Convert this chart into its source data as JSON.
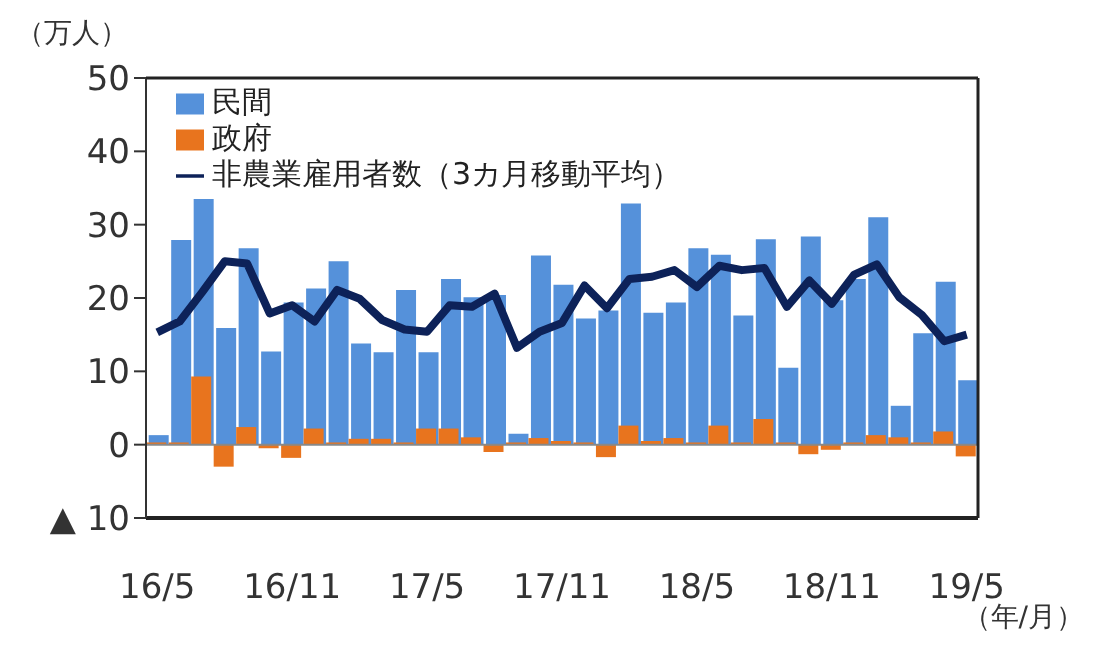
{
  "chart_data": {
    "type": "bar",
    "ylabel": "（万人）",
    "xlabel": "（年/月）",
    "categories": [
      "16/5",
      null,
      null,
      null,
      null,
      null,
      "16/11",
      null,
      null,
      null,
      null,
      null,
      "17/5",
      null,
      null,
      null,
      null,
      null,
      "17/11",
      null,
      null,
      null,
      null,
      null,
      "18/5",
      null,
      null,
      null,
      null,
      null,
      "18/11",
      null,
      null,
      null,
      null,
      null,
      "19/5"
    ],
    "series": [
      {
        "name": "民間",
        "color": "#5591da",
        "values": [
          1.3,
          27.9,
          33.5,
          15.9,
          26.8,
          12.7,
          19.4,
          21.3,
          25.0,
          13.8,
          12.6,
          21.1,
          12.6,
          22.6,
          20.1,
          20.4,
          1.5,
          25.8,
          21.8,
          17.2,
          18.3,
          32.9,
          18.0,
          19.4,
          26.8,
          25.9,
          17.6,
          28.0,
          10.5,
          28.4,
          19.7,
          22.6,
          31.0,
          5.3,
          15.2,
          22.2,
          8.8
        ]
      },
      {
        "name": "政府",
        "color": "#e8741e",
        "values": [
          0.3,
          0.3,
          9.3,
          -3.0,
          2.4,
          -0.5,
          -1.8,
          2.2,
          0.3,
          0.8,
          0.8,
          0.3,
          2.2,
          2.2,
          1.0,
          -1.0,
          0.3,
          0.9,
          0.5,
          0.3,
          -1.7,
          2.6,
          0.5,
          0.9,
          0.3,
          2.6,
          0.3,
          3.5,
          0.3,
          -1.3,
          -0.7,
          0.3,
          1.3,
          1.0,
          0.3,
          1.8,
          -1.6
        ]
      },
      {
        "name": "非農業雇用者数（3カ月移動平均）",
        "type": "line",
        "color": "#0d2259",
        "values": [
          15.3,
          16.8,
          20.8,
          25.0,
          24.7,
          17.9,
          19.0,
          16.8,
          21.1,
          19.9,
          17.0,
          15.7,
          15.4,
          19.0,
          18.8,
          20.6,
          13.2,
          15.4,
          16.6,
          21.7,
          18.6,
          22.6,
          22.9,
          23.8,
          21.5,
          24.4,
          23.8,
          24.1,
          18.8,
          22.4,
          19.2,
          23.2,
          24.6,
          20.1,
          17.7,
          14.1,
          15.0
        ]
      }
    ],
    "ylim": [
      -10,
      50
    ],
    "yticks": [
      {
        "value": -10,
        "label": "▲ 10"
      },
      0,
      10,
      20,
      30,
      40,
      50
    ],
    "ref_lines": [
      {
        "axis": "y",
        "value": 0,
        "color": "#888888"
      }
    ],
    "grid": false,
    "legend": "top left",
    "marker": "none",
    "line_style": "solid"
  }
}
